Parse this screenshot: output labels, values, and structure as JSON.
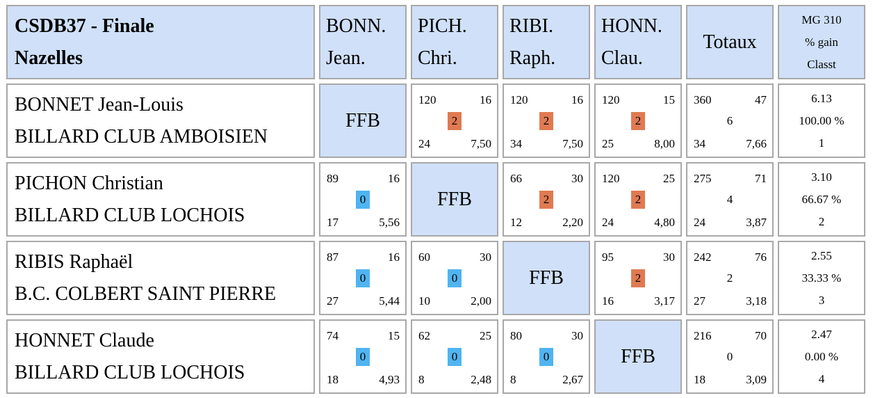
{
  "title": {
    "line1": "CSDB37 - Finale",
    "line2": "Nazelles"
  },
  "columns": [
    {
      "line1": "BONN.",
      "line2": "Jean."
    },
    {
      "line1": "PICH.",
      "line2": "Chri."
    },
    {
      "line1": "RIBI.",
      "line2": "Raph."
    },
    {
      "line1": "HONN.",
      "line2": "Clau."
    }
  ],
  "totals_header": "Totaux",
  "mg_header": {
    "line1": "MG 310",
    "line2": "% gain",
    "line3": "Classt"
  },
  "ffb_label": "FFB",
  "colors": {
    "header_bg": "#cfe0f8",
    "win": "#e07a52",
    "loss": "#50b4f0",
    "border": "#a8a8a8"
  },
  "rows": [
    {
      "name": "BONNET Jean-Louis",
      "club": "BILLARD CLUB AMBOISIEN",
      "cells": [
        null,
        {
          "tl": "120",
          "tr": "16",
          "pts": "2",
          "bl": "24",
          "br": "7,50"
        },
        {
          "tl": "120",
          "tr": "16",
          "pts": "2",
          "bl": "34",
          "br": "7,50"
        },
        {
          "tl": "120",
          "tr": "15",
          "pts": "2",
          "bl": "25",
          "br": "8,00"
        }
      ],
      "totals": {
        "tl": "360",
        "tr": "47",
        "mid": "6",
        "bl": "34",
        "br": "7,66"
      },
      "stats": {
        "mg": "6.13",
        "pct": "100.00 %",
        "rank": "1"
      }
    },
    {
      "name": "PICHON Christian",
      "club": "BILLARD CLUB LOCHOIS",
      "cells": [
        {
          "tl": "89",
          "tr": "16",
          "pts": "0",
          "bl": "17",
          "br": "5,56"
        },
        null,
        {
          "tl": "66",
          "tr": "30",
          "pts": "2",
          "bl": "12",
          "br": "2,20"
        },
        {
          "tl": "120",
          "tr": "25",
          "pts": "2",
          "bl": "24",
          "br": "4,80"
        }
      ],
      "totals": {
        "tl": "275",
        "tr": "71",
        "mid": "4",
        "bl": "24",
        "br": "3,87"
      },
      "stats": {
        "mg": "3.10",
        "pct": "66.67 %",
        "rank": "2"
      }
    },
    {
      "name": "RIBIS Raphaël",
      "club": "B.C. COLBERT SAINT PIERRE",
      "cells": [
        {
          "tl": "87",
          "tr": "16",
          "pts": "0",
          "bl": "27",
          "br": "5,44"
        },
        {
          "tl": "60",
          "tr": "30",
          "pts": "0",
          "bl": "10",
          "br": "2,00"
        },
        null,
        {
          "tl": "95",
          "tr": "30",
          "pts": "2",
          "bl": "16",
          "br": "3,17"
        }
      ],
      "totals": {
        "tl": "242",
        "tr": "76",
        "mid": "2",
        "bl": "27",
        "br": "3,18"
      },
      "stats": {
        "mg": "2.55",
        "pct": "33.33 %",
        "rank": "3"
      }
    },
    {
      "name": "HONNET Claude",
      "club": "BILLARD CLUB LOCHOIS",
      "cells": [
        {
          "tl": "74",
          "tr": "15",
          "pts": "0",
          "bl": "18",
          "br": "4,93"
        },
        {
          "tl": "62",
          "tr": "25",
          "pts": "0",
          "bl": "8",
          "br": "2,48"
        },
        {
          "tl": "80",
          "tr": "30",
          "pts": "0",
          "bl": "8",
          "br": "2,67"
        },
        null
      ],
      "totals": {
        "tl": "216",
        "tr": "70",
        "mid": "0",
        "bl": "18",
        "br": "3,09"
      },
      "stats": {
        "mg": "2.47",
        "pct": "0.00 %",
        "rank": "4"
      }
    }
  ]
}
